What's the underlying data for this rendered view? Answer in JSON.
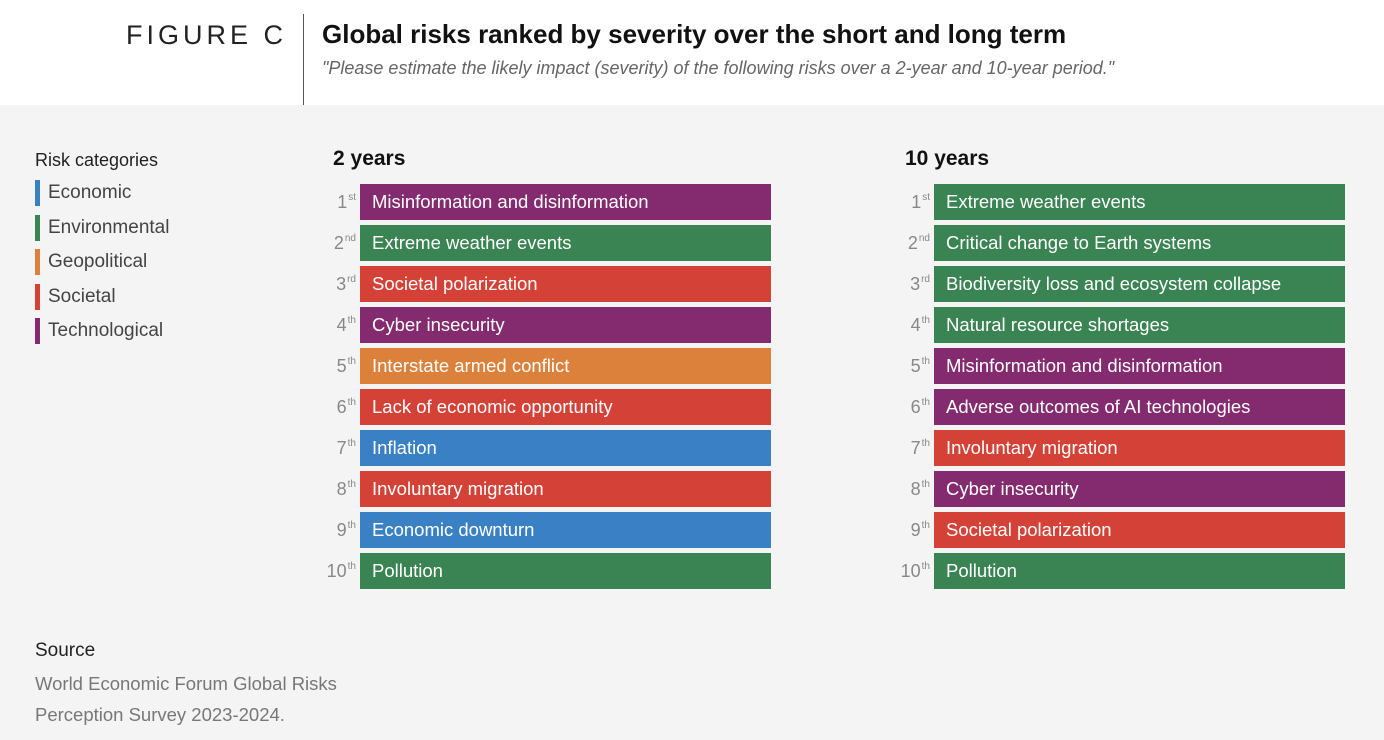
{
  "header": {
    "figure_label": "FIGURE C",
    "title": "Global risks ranked by severity over the short and long term",
    "subtitle": "\"Please estimate the likely impact (severity) of the following risks over a 2-year and 10-year period.\""
  },
  "legend": {
    "title": "Risk categories",
    "items": [
      {
        "label": "Economic",
        "color": "#3a80c4"
      },
      {
        "label": "Environmental",
        "color": "#3a8352"
      },
      {
        "label": "Geopolitical",
        "color": "#db813b"
      },
      {
        "label": "Societal",
        "color": "#d44237"
      },
      {
        "label": "Technological",
        "color": "#842a6f"
      }
    ]
  },
  "chart_data": {
    "type": "table",
    "columns": [
      {
        "title": "2 years",
        "rows": [
          {
            "rank": "1",
            "suffix": "st",
            "risk": "Misinformation and disinformation",
            "category": "Technological"
          },
          {
            "rank": "2",
            "suffix": "nd",
            "risk": "Extreme weather events",
            "category": "Environmental"
          },
          {
            "rank": "3",
            "suffix": "rd",
            "risk": "Societal polarization",
            "category": "Societal"
          },
          {
            "rank": "4",
            "suffix": "th",
            "risk": "Cyber insecurity",
            "category": "Technological"
          },
          {
            "rank": "5",
            "suffix": "th",
            "risk": "Interstate armed conflict",
            "category": "Geopolitical"
          },
          {
            "rank": "6",
            "suffix": "th",
            "risk": "Lack of economic opportunity",
            "category": "Societal"
          },
          {
            "rank": "7",
            "suffix": "th",
            "risk": "Inflation",
            "category": "Economic"
          },
          {
            "rank": "8",
            "suffix": "th",
            "risk": "Involuntary migration",
            "category": "Societal"
          },
          {
            "rank": "9",
            "suffix": "th",
            "risk": "Economic downturn",
            "category": "Economic"
          },
          {
            "rank": "10",
            "suffix": "th",
            "risk": "Pollution",
            "category": "Environmental"
          }
        ]
      },
      {
        "title": "10 years",
        "rows": [
          {
            "rank": "1",
            "suffix": "st",
            "risk": "Extreme weather events",
            "category": "Environmental"
          },
          {
            "rank": "2",
            "suffix": "nd",
            "risk": "Critical change to Earth systems",
            "category": "Environmental"
          },
          {
            "rank": "3",
            "suffix": "rd",
            "risk": "Biodiversity loss and ecosystem collapse",
            "category": "Environmental"
          },
          {
            "rank": "4",
            "suffix": "th",
            "risk": "Natural resource shortages",
            "category": "Environmental"
          },
          {
            "rank": "5",
            "suffix": "th",
            "risk": "Misinformation and disinformation",
            "category": "Technological"
          },
          {
            "rank": "6",
            "suffix": "th",
            "risk": "Adverse outcomes of AI technologies",
            "category": "Technological"
          },
          {
            "rank": "7",
            "suffix": "th",
            "risk": "Involuntary migration",
            "category": "Societal"
          },
          {
            "rank": "8",
            "suffix": "th",
            "risk": "Cyber insecurity",
            "category": "Technological"
          },
          {
            "rank": "9",
            "suffix": "th",
            "risk": "Societal polarization",
            "category": "Societal"
          },
          {
            "rank": "10",
            "suffix": "th",
            "risk": "Pollution",
            "category": "Environmental"
          }
        ]
      }
    ]
  },
  "source": {
    "label": "Source",
    "text": "World Economic Forum Global Risks Perception Survey 2023-2024."
  }
}
